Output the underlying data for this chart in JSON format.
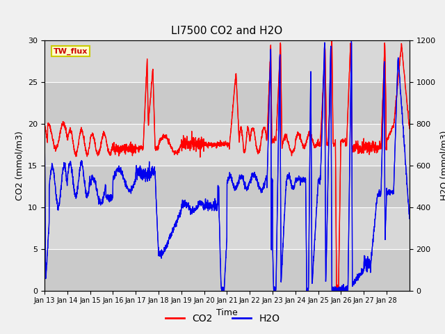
{
  "title": "LI7500 CO2 and H2O",
  "xlabel": "Time",
  "ylabel_left": "CO2 (mmol/m3)",
  "ylabel_right": "H2O (mmol/m3)",
  "legend_label": "TW_flux",
  "co2_color": "#FF0000",
  "h2o_color": "#0000EE",
  "background_color": "#F0F0F0",
  "plot_bg_color": "#E0E0E0",
  "grid_color": "#FFFFFF",
  "ylim_left": [
    0,
    30
  ],
  "ylim_right": [
    0,
    1200
  ],
  "yticks_left": [
    0,
    5,
    10,
    15,
    20,
    25,
    30
  ],
  "yticks_right": [
    0,
    200,
    400,
    600,
    800,
    1000,
    1200
  ],
  "xtick_labels": [
    "Jan 13",
    "Jan 14",
    "Jan 15",
    "Jan 16",
    "Jan 17",
    "Jan 18",
    "Jan 19",
    "Jan 20",
    "Jan 21",
    "Jan 22",
    "Jan 23",
    "Jan 24",
    "Jan 25",
    "Jan 26",
    "Jan 27",
    "Jan 28"
  ],
  "figsize": [
    6.4,
    4.8
  ],
  "dpi": 100
}
